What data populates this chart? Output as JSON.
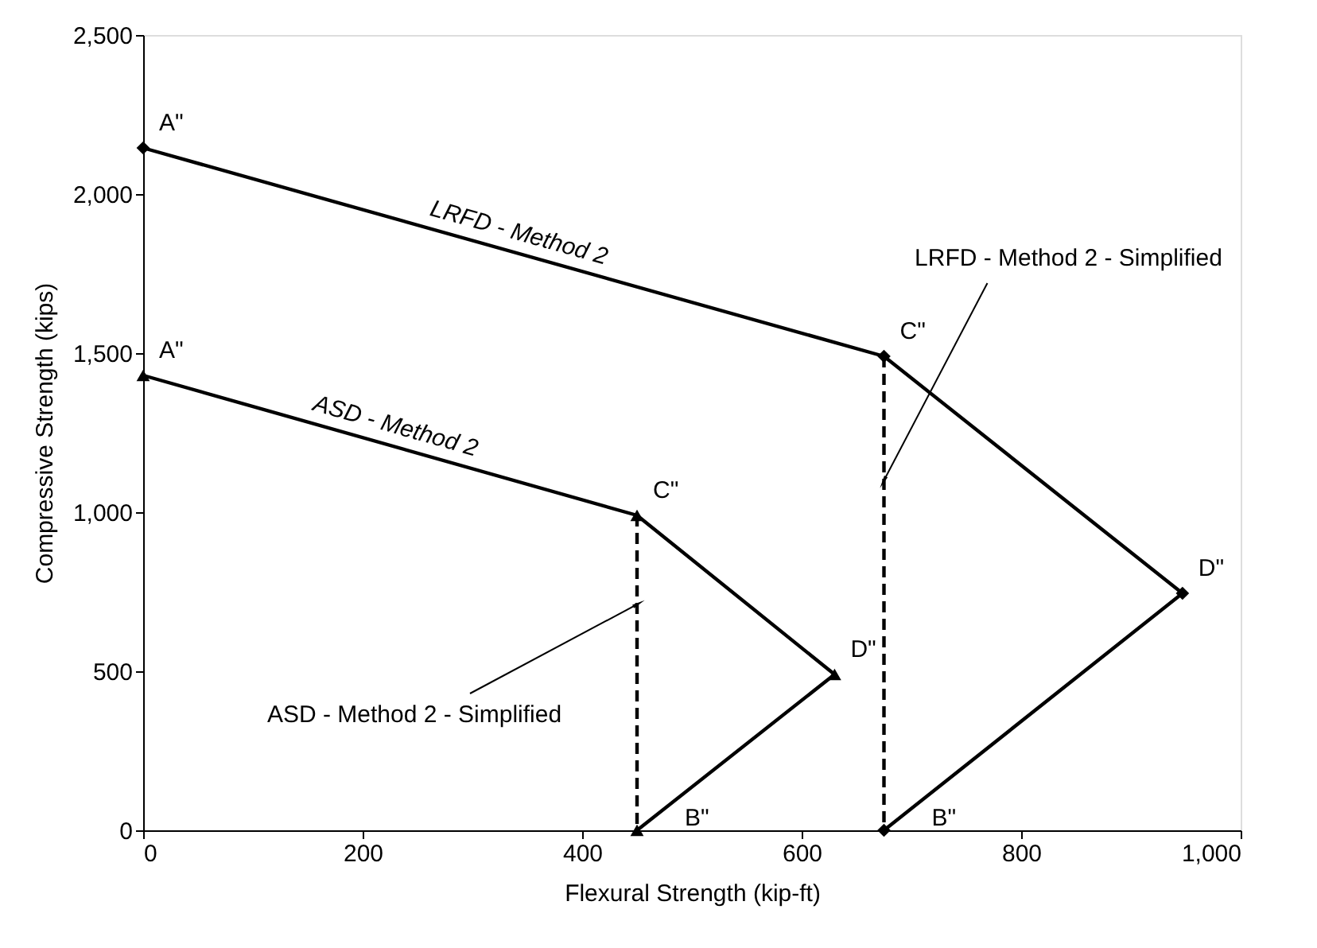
{
  "chart_data": {
    "type": "line",
    "xlabel": "Flexural Strength (kip-ft)",
    "ylabel": "Compressive Strength (kips)",
    "xlim": [
      0,
      1000
    ],
    "xticks": [
      0,
      200,
      400,
      600,
      800,
      {
        "value": 1000,
        "label": "1,000"
      }
    ],
    "ylim": [
      0,
      2500
    ],
    "yticks": [
      0,
      500,
      {
        "value": 1000,
        "label": "1,000"
      },
      {
        "value": 1500,
        "label": "1,500"
      },
      {
        "value": 2000,
        "label": "2,000"
      },
      {
        "value": 2500,
        "label": "2,500"
      }
    ],
    "grid": false,
    "series": [
      {
        "name": "LRFD - Method 2",
        "color": "#000000",
        "x": [
          0,
          675,
          947,
          675
        ],
        "values": [
          2145,
          1490,
          745,
          0
        ],
        "marker": "diamond",
        "line_style": "solid"
      },
      {
        "name": "ASD - Method 2",
        "color": "#000000",
        "x": [
          0,
          450,
          630,
          450
        ],
        "values": [
          1430,
          990,
          490,
          0
        ],
        "marker": "triangle",
        "line_style": "solid"
      },
      {
        "color": "#000000",
        "x": [
          675,
          675
        ],
        "values": [
          1490,
          0
        ],
        "marker": "none",
        "line_style": "dashed"
      },
      {
        "color": "#000000",
        "x": [
          450,
          450
        ],
        "values": [
          990,
          0
        ],
        "marker": "none",
        "line_style": "dashed"
      }
    ],
    "annotations": [
      {
        "text": "A\"",
        "x": 0,
        "y": 2145
      },
      {
        "text": "C\"",
        "x": 675,
        "y": 1490
      },
      {
        "text": "D\"",
        "x": 947,
        "y": 745
      },
      {
        "text": "B\"",
        "x": 675,
        "y": 0
      },
      {
        "text": "A\"",
        "x": 0,
        "y": 1430
      },
      {
        "text": "C\"",
        "x": 450,
        "y": 990
      },
      {
        "text": "D\"",
        "x": 630,
        "y": 490
      },
      {
        "text": "B\"",
        "x": 450,
        "y": 0
      },
      {
        "text": "LRFD - Method 2 - Simplified",
        "x": 675,
        "y": 1100
      },
      {
        "text": "ASD - Method 2 - Simplified",
        "x": 450,
        "y": 710
      }
    ]
  }
}
